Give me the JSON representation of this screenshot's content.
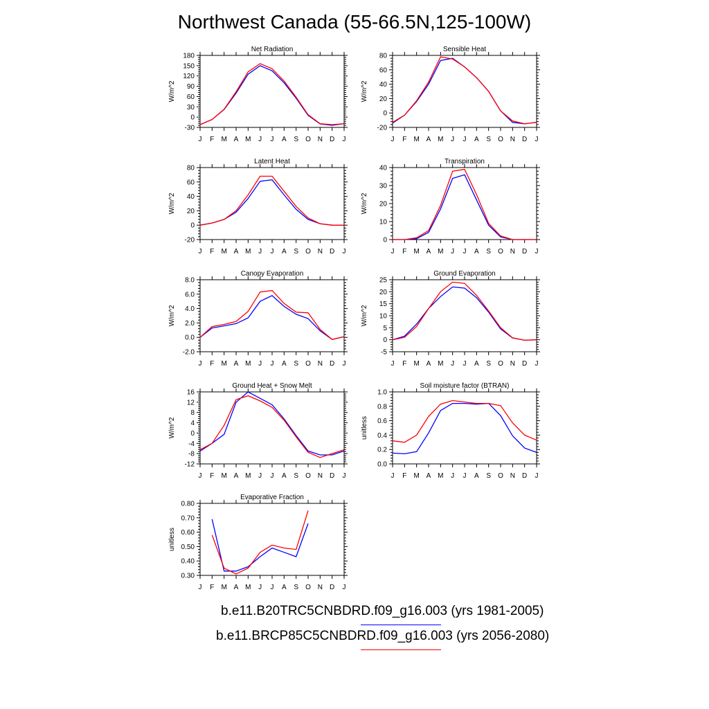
{
  "figure": {
    "title": "Northwest Canada (55-66.5N,125-100W)"
  },
  "colors": {
    "series_1": "#0000ff",
    "series_2": "#ff0000"
  },
  "legend": [
    {
      "label": "b.e11.B20TRC5CNBDRD.f09_g16.003 (yrs 1981-2005)",
      "color": "#0000ff"
    },
    {
      "label": "b.e11.BRCP85C5CNBDRD.f09_g16.003 (yrs 2056-2080)",
      "color": "#ff0000"
    }
  ],
  "chart_data": [
    {
      "type": "line",
      "title": "Net Radiation",
      "ylabel": "W/m^2",
      "x": [
        "J",
        "F",
        "M",
        "A",
        "M",
        "J",
        "J",
        "A",
        "S",
        "O",
        "N",
        "D",
        "J"
      ],
      "ylim": [
        -30,
        180
      ],
      "yticks": [
        -30,
        0,
        30,
        60,
        90,
        120,
        150,
        180
      ],
      "ytick_labels": [
        "-30",
        "0",
        "30",
        "60",
        "90",
        "120",
        "150",
        "180"
      ],
      "series": [
        {
          "color": "#0000ff",
          "values": [
            -22,
            -7,
            22,
            70,
            125,
            150,
            135,
            100,
            55,
            5,
            -20,
            -24,
            -19
          ]
        },
        {
          "color": "#ff0000",
          "values": [
            -22,
            -7,
            23,
            74,
            132,
            156,
            141,
            105,
            58,
            7,
            -19,
            -22,
            -19
          ]
        }
      ]
    },
    {
      "type": "line",
      "title": "Sensible Heat",
      "ylabel": "W/m^2",
      "x": [
        "J",
        "F",
        "M",
        "A",
        "M",
        "J",
        "J",
        "A",
        "S",
        "O",
        "N",
        "D",
        "J"
      ],
      "ylim": [
        -20,
        80
      ],
      "yticks": [
        -20,
        0,
        20,
        40,
        60,
        80
      ],
      "ytick_labels": [
        "-20",
        "0",
        "20",
        "40",
        "60",
        "80"
      ],
      "series": [
        {
          "color": "#0000ff",
          "values": [
            -14,
            -3,
            16,
            40,
            73,
            76,
            64,
            49,
            30,
            3,
            -13,
            -15,
            -13
          ]
        },
        {
          "color": "#ff0000",
          "values": [
            -13,
            -3,
            17,
            43,
            78,
            75,
            64,
            49,
            30,
            3,
            -11,
            -15,
            -13
          ]
        }
      ]
    },
    {
      "type": "line",
      "title": "Latent Heat",
      "ylabel": "W/m^2",
      "x": [
        "J",
        "F",
        "M",
        "A",
        "M",
        "J",
        "J",
        "A",
        "S",
        "O",
        "N",
        "D",
        "J"
      ],
      "ylim": [
        -20,
        80
      ],
      "yticks": [
        -20,
        0,
        20,
        40,
        60,
        80
      ],
      "ytick_labels": [
        "-20",
        "0",
        "20",
        "40",
        "60",
        "80"
      ],
      "series": [
        {
          "color": "#0000ff",
          "values": [
            0,
            3,
            8,
            18,
            37,
            61,
            63,
            42,
            22,
            8,
            2,
            0,
            0
          ]
        },
        {
          "color": "#ff0000",
          "values": [
            0,
            3,
            8,
            20,
            42,
            68,
            68,
            47,
            26,
            10,
            2,
            0,
            0
          ]
        }
      ]
    },
    {
      "type": "line",
      "title": "Transpiration",
      "ylabel": "W/m^2",
      "x": [
        "J",
        "F",
        "M",
        "A",
        "M",
        "J",
        "J",
        "A",
        "S",
        "O",
        "N",
        "D",
        "J"
      ],
      "ylim": [
        0,
        40
      ],
      "yticks": [
        0,
        10,
        20,
        30,
        40
      ],
      "ytick_labels": [
        "0",
        "10",
        "20",
        "30",
        "40"
      ],
      "series": [
        {
          "color": "#0000ff",
          "values": [
            0,
            0,
            0.5,
            4,
            17,
            34,
            36,
            22,
            8,
            1.5,
            0,
            0,
            0
          ]
        },
        {
          "color": "#ff0000",
          "values": [
            0,
            0,
            1,
            5,
            19,
            38,
            39,
            25,
            9,
            2,
            0,
            0,
            0
          ]
        }
      ]
    },
    {
      "type": "line",
      "title": "Canopy Evaporation",
      "ylabel": "W/m^2",
      "x": [
        "J",
        "F",
        "M",
        "A",
        "M",
        "J",
        "J",
        "A",
        "S",
        "O",
        "N",
        "D",
        "J"
      ],
      "ylim": [
        -2,
        8
      ],
      "yticks": [
        -2,
        0,
        2,
        4,
        6,
        8
      ],
      "ytick_labels": [
        "-2.0",
        "0.0",
        "2.0",
        "4.0",
        "6.0",
        "8.0"
      ],
      "series": [
        {
          "color": "#0000ff",
          "values": [
            0,
            1.3,
            1.6,
            1.9,
            2.7,
            5.0,
            5.8,
            4.3,
            3.2,
            2.6,
            0.9,
            -0.3,
            0.1
          ]
        },
        {
          "color": "#ff0000",
          "values": [
            0,
            1.5,
            1.8,
            2.2,
            3.6,
            6.3,
            6.5,
            4.7,
            3.5,
            3.4,
            1.1,
            -0.3,
            0.1
          ]
        }
      ]
    },
    {
      "type": "line",
      "title": "Ground Evaporation",
      "ylabel": "W/m^2",
      "x": [
        "J",
        "F",
        "M",
        "A",
        "M",
        "J",
        "J",
        "A",
        "S",
        "O",
        "N",
        "D",
        "J"
      ],
      "ylim": [
        -5,
        25
      ],
      "yticks": [
        -5,
        0,
        5,
        10,
        15,
        20,
        25
      ],
      "ytick_labels": [
        "-5",
        "0",
        "5",
        "10",
        "15",
        "20",
        "25"
      ],
      "series": [
        {
          "color": "#0000ff",
          "values": [
            0,
            1.5,
            6.5,
            13,
            18,
            22,
            21.5,
            17.5,
            11.5,
            4.5,
            0.7,
            -0.2,
            0
          ]
        },
        {
          "color": "#ff0000",
          "values": [
            0,
            1,
            5.5,
            13,
            20,
            24,
            23.5,
            18.5,
            12,
            5,
            0.8,
            -0.2,
            0
          ]
        }
      ]
    },
    {
      "type": "line",
      "title": "Ground Heat + Snow Melt",
      "ylabel": "W/m^2",
      "x": [
        "J",
        "F",
        "M",
        "A",
        "M",
        "J",
        "J",
        "A",
        "S",
        "O",
        "N",
        "D",
        "J"
      ],
      "ylim": [
        -12,
        16
      ],
      "yticks": [
        -12,
        -8,
        -4,
        0,
        4,
        8,
        12,
        16
      ],
      "ytick_labels": [
        "-12",
        "-8",
        "-4",
        "0",
        "4",
        "8",
        "12",
        "16"
      ],
      "series": [
        {
          "color": "#0000ff",
          "values": [
            -7,
            -4,
            -0.5,
            12,
            16,
            13.5,
            11,
            5.5,
            -1,
            -7,
            -8.5,
            -8.5,
            -7
          ]
        },
        {
          "color": "#ff0000",
          "values": [
            -6.5,
            -4,
            3,
            13,
            14.5,
            12.5,
            10,
            5,
            -1.5,
            -7.5,
            -9.5,
            -8,
            -6.5
          ]
        }
      ]
    },
    {
      "type": "line",
      "title": "Soil moisture factor (BTRAN)",
      "ylabel": "unitless",
      "x": [
        "J",
        "F",
        "M",
        "A",
        "M",
        "J",
        "J",
        "A",
        "S",
        "O",
        "N",
        "D",
        "J"
      ],
      "ylim": [
        0,
        1
      ],
      "yticks": [
        0,
        0.2,
        0.4,
        0.6,
        0.8,
        1.0
      ],
      "ytick_labels": [
        "0.0",
        "0.2",
        "0.4",
        "0.6",
        "0.8",
        "1.0"
      ],
      "series": [
        {
          "color": "#0000ff",
          "values": [
            0.15,
            0.14,
            0.17,
            0.43,
            0.74,
            0.84,
            0.84,
            0.83,
            0.84,
            0.67,
            0.39,
            0.22,
            0.16
          ]
        },
        {
          "color": "#ff0000",
          "values": [
            0.32,
            0.3,
            0.4,
            0.66,
            0.83,
            0.88,
            0.86,
            0.84,
            0.84,
            0.81,
            0.57,
            0.4,
            0.33
          ]
        }
      ]
    },
    {
      "type": "line",
      "title": "Evaporative Fraction",
      "ylabel": "unitless",
      "x": [
        "J",
        "F",
        "M",
        "A",
        "M",
        "J",
        "J",
        "A",
        "S",
        "O",
        "N",
        "D",
        "J"
      ],
      "ylim": [
        0.3,
        0.8
      ],
      "yticks": [
        0.3,
        0.4,
        0.5,
        0.6,
        0.7,
        0.8
      ],
      "ytick_labels": [
        "0.30",
        "0.40",
        "0.50",
        "0.60",
        "0.70",
        "0.80"
      ],
      "series": [
        {
          "color": "#0000ff",
          "values": [
            null,
            0.69,
            0.33,
            0.33,
            0.36,
            0.43,
            0.49,
            0.46,
            0.43,
            0.66,
            null,
            null,
            null
          ]
        },
        {
          "color": "#ff0000",
          "values": [
            null,
            0.58,
            0.35,
            0.31,
            0.35,
            0.46,
            0.51,
            0.49,
            0.48,
            0.75,
            null,
            null,
            null
          ]
        }
      ]
    }
  ]
}
